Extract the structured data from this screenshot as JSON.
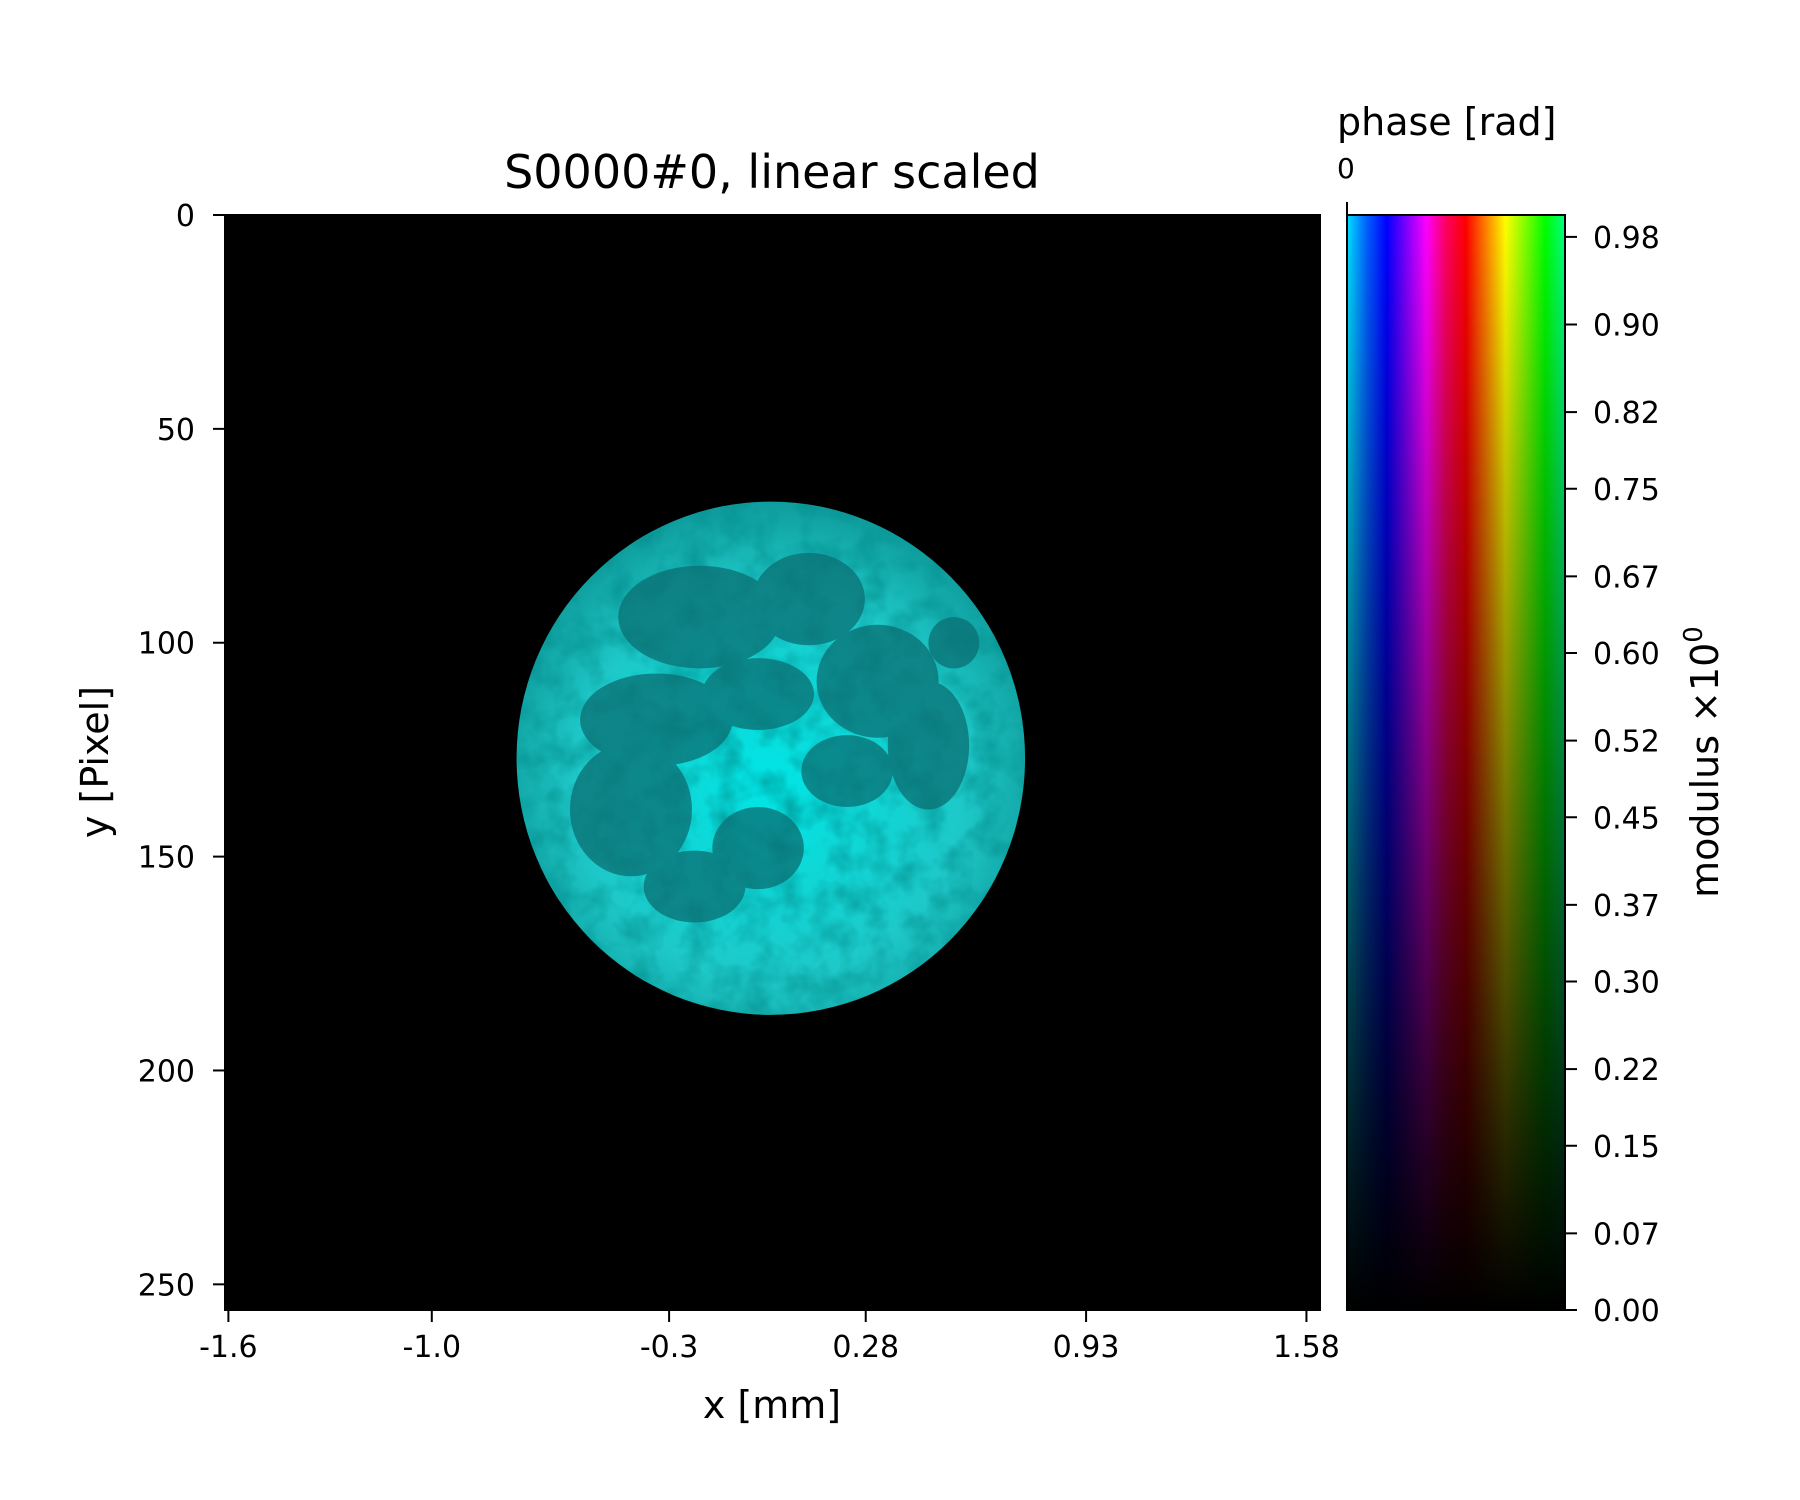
{
  "chart_data": {
    "type": "heatmap",
    "title": "S0000#0, linear scaled",
    "xlabel": "x [mm]",
    "ylabel": "y [Pixel]",
    "x_ticks": [
      "-1.6",
      "-1.0",
      "-0.3",
      "0.28",
      "0.93",
      "1.58"
    ],
    "x_tick_values": [
      -1.6,
      -1.0,
      -0.3,
      0.28,
      0.93,
      1.58
    ],
    "xlim": [
      -1.61,
      1.62
    ],
    "y_ticks": [
      "0",
      "50",
      "100",
      "150",
      "200",
      "250"
    ],
    "y_tick_values": [
      0,
      50,
      100,
      150,
      200,
      250
    ],
    "ylim": [
      256,
      0
    ],
    "image": {
      "description_color": "#00d8d8",
      "disk_center": [
        0.0,
        127
      ],
      "disk_radius_y": 60,
      "disk_radius_x": 0.75
    },
    "colorbar": {
      "label": "modulus ×10",
      "label_exponent": "0",
      "top_label": "phase [rad]",
      "top_tick": "0",
      "ticks": [
        "0.98",
        "0.90",
        "0.82",
        "0.75",
        "0.67",
        "0.60",
        "0.52",
        "0.45",
        "0.37",
        "0.30",
        "0.22",
        "0.15",
        "0.07",
        "0.00"
      ],
      "tick_values": [
        0.98,
        0.9,
        0.82,
        0.75,
        0.67,
        0.6,
        0.52,
        0.45,
        0.37,
        0.3,
        0.22,
        0.15,
        0.07,
        0.0
      ],
      "range": [
        0,
        1.0
      ],
      "hue_stops": [
        "#00e0ff",
        "#0060ff",
        "#0000ff",
        "#8000ff",
        "#ff00ff",
        "#ff0060",
        "#ff0000",
        "#ff8000",
        "#ffff00",
        "#80ff00",
        "#00ff00",
        "#00ff80"
      ]
    },
    "grid": false
  }
}
